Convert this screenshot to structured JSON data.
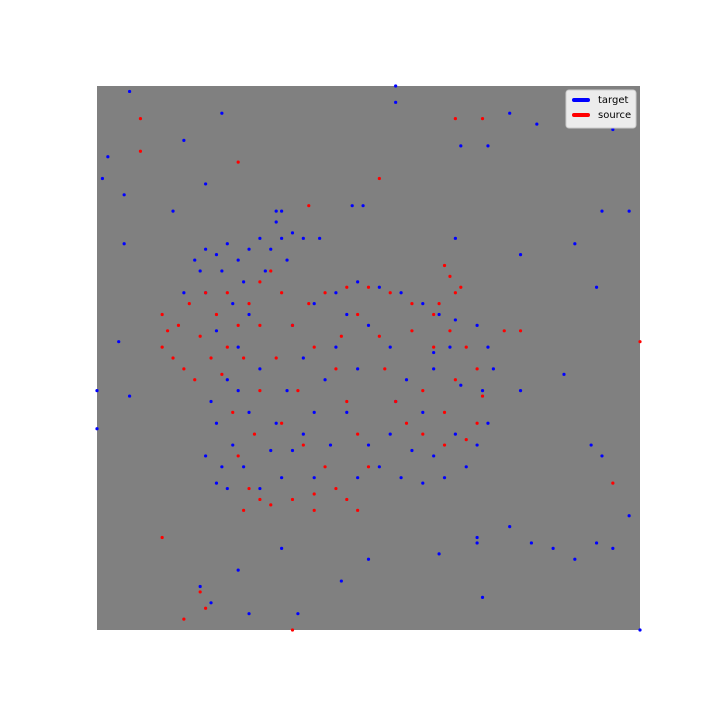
{
  "chart_data": {
    "type": "scatter",
    "background": "#808080",
    "legend": "upper right",
    "xlim": [
      0,
      100
    ],
    "ylim": [
      0,
      100
    ],
    "series": [
      {
        "name": "target",
        "color": "#0000ff",
        "x": [
          18,
          20,
          22,
          24,
          19,
          23,
          26,
          28,
          30,
          32,
          34,
          36,
          38,
          41,
          35,
          31,
          27,
          33,
          34,
          16,
          20,
          25,
          21,
          22,
          20,
          23,
          25,
          24,
          26,
          22,
          28,
          30,
          28,
          27,
          30,
          34,
          36,
          33,
          35,
          38,
          36,
          40,
          44,
          48,
          52,
          56,
          60,
          63,
          66,
          70,
          72,
          73,
          71,
          72,
          70,
          68,
          64,
          60,
          56,
          52,
          50,
          54,
          58,
          62,
          66,
          60,
          57,
          54,
          50,
          46,
          44,
          42,
          46,
          43,
          40,
          48,
          55,
          62,
          67,
          65,
          48,
          40,
          32,
          38,
          26,
          6,
          23,
          55,
          55,
          76,
          81,
          95,
          67,
          72,
          1,
          5,
          14,
          33,
          47,
          49,
          93,
          98,
          66,
          5,
          88,
          78,
          92,
          4,
          62,
          86,
          78,
          0,
          6,
          0,
          91,
          93,
          22,
          24,
          98,
          34,
          45,
          70,
          70,
          63,
          50,
          95,
          88,
          92,
          76,
          80,
          84,
          71,
          26,
          21,
          28,
          37,
          19,
          100,
          2,
          16,
          20
        ],
        "values": [
          68,
          70,
          69,
          71,
          66,
          66,
          68,
          70,
          72,
          70,
          72,
          73,
          72,
          72,
          68,
          66,
          64,
          75,
          77,
          62,
          62,
          60,
          42,
          38,
          32,
          30,
          34,
          46,
          52,
          55,
          58,
          48,
          40,
          30,
          26,
          28,
          33,
          38,
          44,
          50,
          56,
          60,
          62,
          64,
          63,
          62,
          60,
          58,
          57,
          56,
          52,
          48,
          44,
          38,
          34,
          30,
          28,
          27,
          28,
          30,
          34,
          36,
          33,
          32,
          36,
          40,
          46,
          52,
          56,
          58,
          52,
          46,
          40,
          34,
          28,
          28,
          42,
          48,
          45,
          52,
          48,
          40,
          33,
          36,
          44,
          99,
          95,
          100,
          97,
          95,
          93,
          92,
          89,
          89,
          83,
          80,
          77,
          77,
          78,
          78,
          77,
          77,
          72,
          71,
          71,
          69,
          63,
          53,
          51,
          47,
          44,
          44,
          43,
          37,
          34,
          32,
          27,
          26,
          21,
          15,
          9,
          17,
          16,
          14,
          13,
          15,
          13,
          16,
          19,
          16,
          15,
          6,
          11,
          5,
          3,
          3,
          8,
          0,
          87,
          90,
          82
        ]
      },
      {
        "name": "source",
        "color": "#ff0000",
        "x": [
          12,
          13,
          12,
          14,
          16,
          18,
          15,
          17,
          20,
          22,
          19,
          21,
          24,
          26,
          28,
          30,
          24,
          27,
          23,
          32,
          34,
          30,
          25,
          26,
          28,
          30,
          27,
          32,
          36,
          40,
          44,
          42,
          38,
          34,
          30,
          33,
          36,
          39,
          42,
          46,
          50,
          54,
          58,
          62,
          65,
          68,
          70,
          71,
          70,
          68,
          64,
          60,
          57,
          55,
          53,
          52,
          48,
          45,
          44,
          46,
          48,
          50,
          46,
          60,
          64,
          66,
          62,
          58,
          66,
          65,
          64,
          67,
          63,
          29,
          37,
          40,
          8,
          66,
          71,
          8,
          26,
          52,
          39,
          78,
          100,
          75,
          40,
          48,
          12,
          19,
          20,
          16,
          36,
          95
        ],
        "values": [
          58,
          55,
          52,
          50,
          48,
          46,
          56,
          60,
          62,
          58,
          54,
          50,
          52,
          56,
          60,
          64,
          62,
          50,
          47,
          66,
          62,
          56,
          40,
          32,
          26,
          24,
          22,
          23,
          24,
          25,
          26,
          30,
          34,
          38,
          44,
          50,
          56,
          60,
          62,
          63,
          63,
          62,
          60,
          58,
          55,
          52,
          48,
          43,
          38,
          35,
          34,
          36,
          38,
          42,
          48,
          54,
          58,
          54,
          48,
          42,
          36,
          30,
          24,
          44,
          40,
          46,
          52,
          55,
          62,
          65,
          67,
          63,
          60,
          36,
          44,
          52,
          94,
          94,
          94,
          88,
          86,
          83,
          78,
          55,
          53,
          55,
          22,
          22,
          17,
          7,
          4,
          2,
          0,
          27
        ]
      }
    ]
  }
}
